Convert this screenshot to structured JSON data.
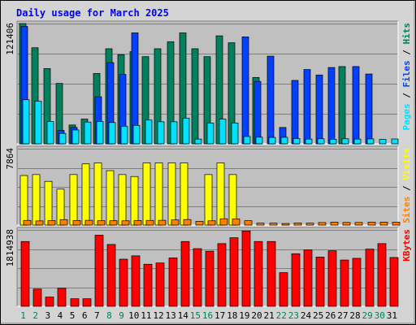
{
  "title": "Daily usage for March 2025",
  "colors": {
    "title": "#0000ff",
    "frame_bg": "#d4d4d4",
    "plot_bg": "#c0c0c0",
    "hits": "#00805c",
    "files": "#0040ff",
    "pages": "#00e0ff",
    "visits": "#ffff00",
    "sites": "#ff8000",
    "kbytes": "#ff0000",
    "weekend_label": "#00805c",
    "weekday_label": "#000000"
  },
  "chart_data": [
    {
      "type": "bar",
      "panel": "hits-files-pages",
      "ymax_label": "121406",
      "ymax": 121406,
      "legend": [
        "Pages",
        "Files",
        "Hits"
      ],
      "categories": [
        "1",
        "2",
        "3",
        "4",
        "5",
        "6",
        "7",
        "8",
        "9",
        "10",
        "11",
        "12",
        "13",
        "14",
        "15",
        "16",
        "17",
        "18",
        "19",
        "20",
        "21",
        "22",
        "23",
        "24",
        "25",
        "26",
        "27",
        "28",
        "29",
        "30",
        "31"
      ],
      "series": [
        {
          "name": "Hits",
          "values": [
            121406,
            97000,
            76000,
            61000,
            19000,
            25000,
            71000,
            96000,
            90000,
            93000,
            88000,
            96000,
            103000,
            112000,
            96000,
            88000,
            109000,
            102000,
            0,
            67000,
            0,
            0,
            0,
            0,
            0,
            0,
            78000,
            0,
            0,
            0,
            0
          ]
        },
        {
          "name": "Files",
          "values": [
            118500,
            0,
            0,
            13500,
            16500,
            0,
            47500,
            82000,
            70000,
            112000,
            0,
            0,
            0,
            0,
            0,
            0,
            0,
            0,
            108000,
            63000,
            88500,
            16500,
            64000,
            75000,
            69500,
            77000,
            0,
            78000,
            70500,
            0,
            0
          ]
        },
        {
          "name": "Pages",
          "values": [
            44500,
            43000,
            22500,
            10500,
            14000,
            22000,
            22500,
            21500,
            17700,
            18600,
            24000,
            22300,
            22300,
            25800,
            4800,
            21000,
            25000,
            21000,
            7400,
            6700,
            6500,
            6600,
            5400,
            4800,
            5100,
            4600,
            5100,
            4800,
            5000,
            4500,
            4900
          ]
        }
      ]
    },
    {
      "type": "bar",
      "panel": "visits-sites",
      "ymax_label": "7864",
      "ymax": 7864,
      "legend": [
        "Sites",
        "Visits"
      ],
      "categories": [
        "1",
        "2",
        "3",
        "4",
        "5",
        "6",
        "7",
        "8",
        "9",
        "10",
        "11",
        "12",
        "13",
        "14",
        "15",
        "16",
        "17",
        "18",
        "19",
        "20",
        "21",
        "22",
        "23",
        "24",
        "25",
        "26",
        "27",
        "28",
        "29",
        "30",
        "31"
      ],
      "series": [
        {
          "name": "Visits",
          "values": [
            5100,
            5200,
            4500,
            3700,
            5200,
            6300,
            6400,
            5600,
            5200,
            5000,
            6400,
            6400,
            6400,
            6400,
            0,
            5200,
            6400,
            5200,
            0,
            0,
            0,
            0,
            0,
            0,
            0,
            0,
            0,
            0,
            0,
            0,
            0
          ]
        },
        {
          "name": "Sites",
          "values": [
            480,
            430,
            460,
            560,
            470,
            490,
            450,
            450,
            440,
            470,
            480,
            490,
            530,
            570,
            390,
            440,
            650,
            630,
            450,
            200,
            200,
            160,
            220,
            200,
            260,
            300,
            270,
            270,
            300,
            300,
            300
          ]
        }
      ]
    },
    {
      "type": "bar",
      "panel": "kbytes",
      "ymax_label": "1814938",
      "ymax": 1814938,
      "legend": [
        "KBytes"
      ],
      "categories": [
        "1",
        "2",
        "3",
        "4",
        "5",
        "6",
        "7",
        "8",
        "9",
        "10",
        "11",
        "12",
        "13",
        "14",
        "15",
        "16",
        "17",
        "18",
        "19",
        "20",
        "21",
        "22",
        "23",
        "24",
        "25",
        "26",
        "27",
        "28",
        "29",
        "30",
        "31"
      ],
      "series": [
        {
          "name": "KBytes",
          "values": [
            1540000,
            410000,
            220000,
            430000,
            180000,
            180000,
            1690000,
            1470000,
            1120000,
            1200000,
            1000000,
            1030000,
            1150000,
            1540000,
            1370000,
            1310000,
            1490000,
            1630000,
            1790000,
            1540000,
            1540000,
            800000,
            1250000,
            1340000,
            1170000,
            1320000,
            1100000,
            1140000,
            1360000,
            1490000,
            1160000
          ]
        }
      ]
    }
  ]
}
